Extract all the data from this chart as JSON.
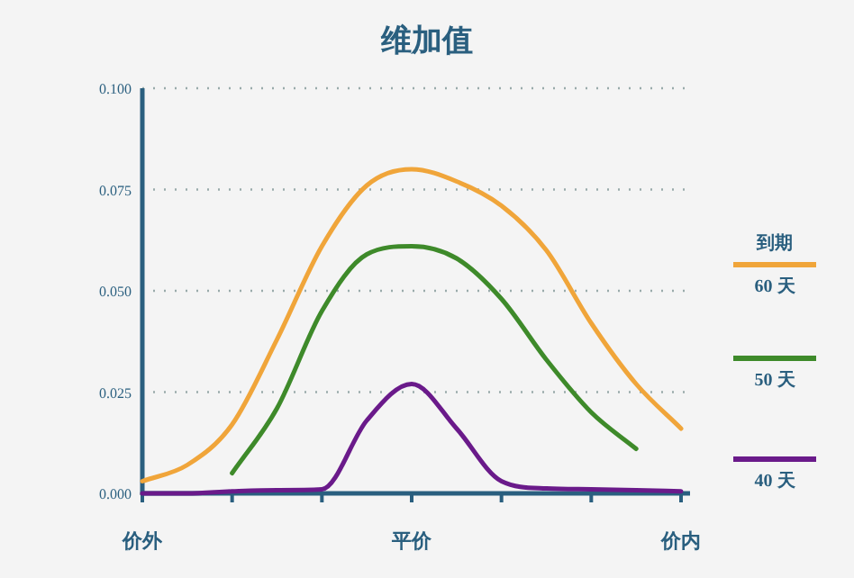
{
  "chart_data": {
    "type": "line",
    "title": "维加值",
    "categories": [
      "价外",
      null,
      null,
      null,
      null,
      null,
      "平价",
      null,
      null,
      null,
      null,
      null,
      "价内"
    ],
    "ylim": [
      0,
      0.1
    ],
    "yticks": [
      {
        "value": 0,
        "label": "0.000"
      },
      {
        "value": 0.025,
        "label": "0.025"
      },
      {
        "value": 0.05,
        "label": "0.050"
      },
      {
        "value": 0.075,
        "label": "0.075"
      },
      {
        "value": 0.1,
        "label": "0.100"
      }
    ],
    "grid": "y",
    "legend": "right",
    "legend_title": "到期",
    "marker": "none",
    "line_style": "solid",
    "series": [
      {
        "name": "60 天",
        "color": "#f0a53a",
        "values": [
          0.003,
          0.007,
          0.017,
          0.038,
          0.061,
          0.076,
          0.08,
          0.077,
          0.071,
          0.06,
          0.042,
          0.027,
          0.016
        ]
      },
      {
        "name": "50 天",
        "color": "#3e8a2a",
        "values": [
          null,
          null,
          0.005,
          0.021,
          0.045,
          0.059,
          0.061,
          0.058,
          0.048,
          0.033,
          0.02,
          0.011,
          null
        ]
      },
      {
        "name": "40 天",
        "color": "#6a1a8a",
        "values": [
          0,
          0,
          0.0005,
          0.0008,
          0.001,
          0.018,
          0.027,
          0.016,
          0.003,
          0.0012,
          0.001,
          0.0008,
          0.0005
        ]
      }
    ]
  }
}
